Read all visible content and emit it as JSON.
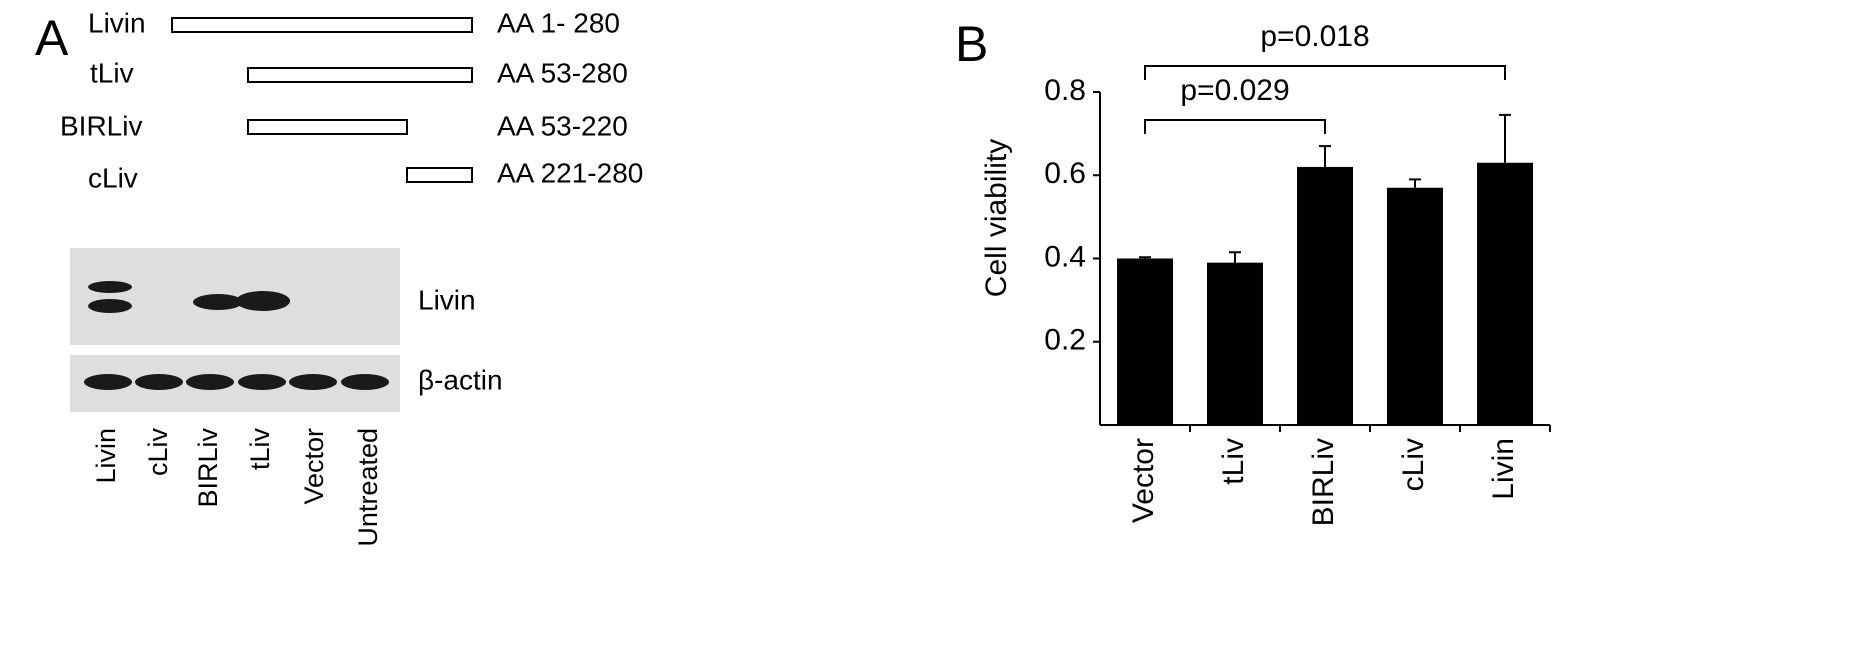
{
  "panel_a": {
    "label": "A",
    "constructs": [
      {
        "name": "Livin",
        "range": "AA 1- 280"
      },
      {
        "name": "tLiv",
        "range": "AA 53-280"
      },
      {
        "name": "BIRLiv",
        "range": "AA 53-220"
      },
      {
        "name": "cLiv",
        "range": "AA 221-280"
      }
    ],
    "blot_rows": [
      "Livin",
      "β-actin"
    ],
    "lanes": [
      "Livin",
      "cLiv",
      "BIRLiv",
      "tLiv",
      "Vector",
      "Untreated"
    ]
  },
  "chart_data": {
    "type": "bar",
    "panel_label": "B",
    "y_label": "Cell viability",
    "categories": [
      "Vector",
      "tLiv",
      "BIRLiv",
      "cLiv",
      "Livin"
    ],
    "values": [
      0.4,
      0.39,
      0.62,
      0.57,
      0.63
    ],
    "errors": [
      0.003,
      0.025,
      0.05,
      0.02,
      0.115
    ],
    "color": "#000000",
    "ylim": [
      0,
      0.8
    ],
    "yticks": [
      0.2,
      0.4,
      0.6,
      0.8
    ],
    "annotations": [
      "p=0.029",
      "p=0.018"
    ]
  }
}
